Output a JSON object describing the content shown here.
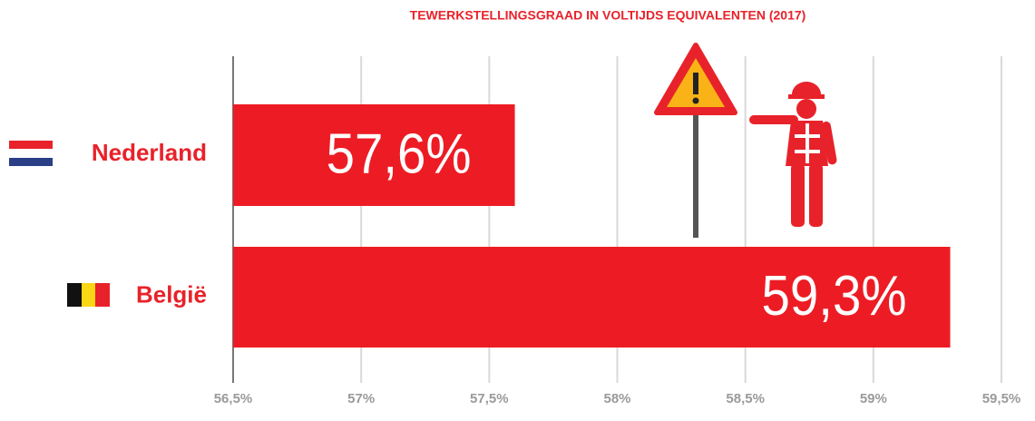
{
  "chart_data": {
    "type": "bar",
    "orientation": "horizontal",
    "title": "TEWERKSTELLINGSGRAAD IN VOLTIJDS EQUIVALENTEN (2017)",
    "categories": [
      "Nederland",
      "België"
    ],
    "values": [
      57.6,
      59.3
    ],
    "value_labels": [
      "57,6%",
      "59,3%"
    ],
    "color": "#ed1c24",
    "xlim": [
      56.5,
      59.5
    ],
    "xticks": [
      {
        "value": 56.5,
        "label": "56,5%"
      },
      {
        "value": 57,
        "label": "57%"
      },
      {
        "value": 57.5,
        "label": "57,5%"
      },
      {
        "value": 58,
        "label": "58%"
      },
      {
        "value": 58.5,
        "label": "58,5%"
      },
      {
        "value": 59,
        "label": "59%"
      },
      {
        "value": 59.5,
        "label": "59,5%"
      }
    ],
    "grid": true
  }
}
